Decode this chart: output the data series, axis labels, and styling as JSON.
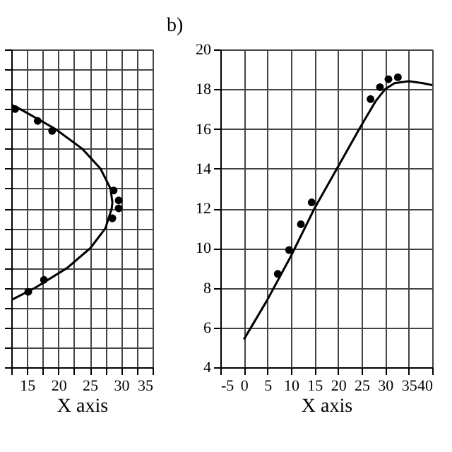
{
  "chart_data": [
    {
      "type": "scatter",
      "xlabel": "X axis",
      "grid": true,
      "tick_labels": "x",
      "xlim": [
        12.5,
        35
      ],
      "ylim": [
        4,
        20
      ],
      "xticks": [
        {
          "value": 12.5,
          "label": null
        },
        15,
        {
          "value": 17.5,
          "label": null
        },
        20,
        {
          "value": 22.5,
          "label": null
        },
        25,
        {
          "value": 27.5,
          "label": null
        },
        30,
        {
          "value": 32.5,
          "label": null
        },
        35
      ],
      "yticks": [
        {
          "value": 4,
          "label": null
        },
        {
          "value": 5,
          "label": null
        },
        {
          "value": 6,
          "label": null
        },
        {
          "value": 7,
          "label": null
        },
        {
          "value": 8,
          "label": null
        },
        {
          "value": 9,
          "label": null
        },
        {
          "value": 10,
          "label": null
        },
        {
          "value": 11,
          "label": null
        },
        {
          "value": 12,
          "label": null
        },
        {
          "value": 13,
          "label": null
        },
        {
          "value": 14,
          "label": null
        },
        {
          "value": 15,
          "label": null
        },
        {
          "value": 16,
          "label": null
        },
        {
          "value": 17,
          "label": null
        },
        {
          "value": 18,
          "label": null
        },
        {
          "value": 19,
          "label": null
        },
        {
          "value": 20,
          "label": null
        }
      ],
      "series": [
        {
          "type": "line",
          "color": "#000000",
          "marker": "none",
          "line_style": "solid",
          "x": [
            12.6,
            16.3,
            21.4,
            25.1,
            27.5,
            28.5,
            28.6,
            28.3,
            26.7,
            23.8,
            19.5,
            13.9,
            12.6
          ],
          "values": [
            7.4,
            8,
            9,
            10,
            11,
            12,
            12.3,
            13,
            14,
            15,
            16,
            17,
            17.2
          ]
        },
        {
          "color": "#000000",
          "marker": "circle",
          "x": [
            13.1,
            16.7,
            19.0,
            28.8,
            29.6,
            29.6,
            28.6,
            17.7,
            15.2
          ],
          "values": [
            17.0,
            16.4,
            15.9,
            12.9,
            12.4,
            12.0,
            11.5,
            8.4,
            7.8
          ]
        }
      ]
    },
    {
      "type": "scatter",
      "title": "b)",
      "xlabel": "X axis",
      "grid": true,
      "xlim": [
        -5,
        40
      ],
      "ylim": [
        4,
        20
      ],
      "xticks": [
        -5,
        0,
        5,
        10,
        15,
        20,
        25,
        30,
        35,
        40
      ],
      "yticks": [
        4,
        6,
        8,
        10,
        12,
        14,
        16,
        18,
        20
      ],
      "series": [
        {
          "type": "line",
          "color": "#000000",
          "marker": "none",
          "line_style": "solid",
          "x": [
            0,
            5,
            10,
            15,
            20,
            25,
            28,
            30,
            32,
            35,
            38,
            40
          ],
          "values": [
            5.4,
            7.4,
            9.6,
            12.0,
            14.1,
            16.2,
            17.4,
            18.0,
            18.3,
            18.4,
            18.3,
            18.2
          ]
        },
        {
          "color": "#000000",
          "marker": "circle",
          "x": [
            7.2,
            9.6,
            12.1,
            14.4,
            26.9,
            28.9,
            30.7,
            32.7
          ],
          "values": [
            8.7,
            9.9,
            11.2,
            12.3,
            17.5,
            18.1,
            18.5,
            18.6
          ]
        }
      ]
    }
  ]
}
